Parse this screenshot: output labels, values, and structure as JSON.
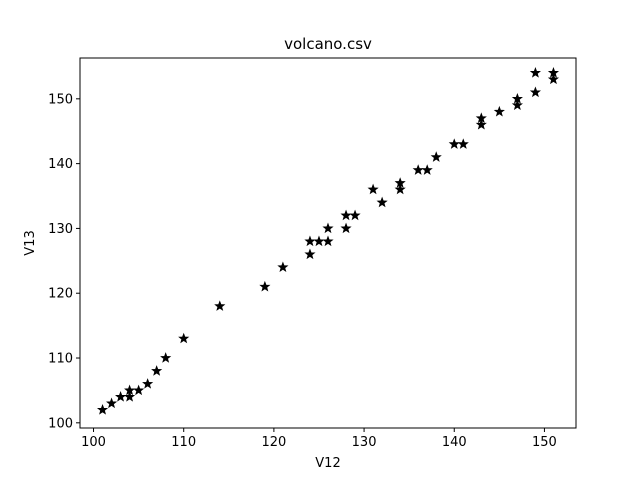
{
  "chart_data": {
    "type": "scatter",
    "title": "volcano.csv",
    "xlabel": "V12",
    "ylabel": "V13",
    "xlim": [
      98.5,
      153.5
    ],
    "ylim": [
      99.2,
      156.3
    ],
    "xticks": [
      100,
      110,
      120,
      130,
      140,
      150
    ],
    "yticks": [
      100,
      110,
      120,
      130,
      140,
      150
    ],
    "marker": "star",
    "marker_color": "#000000",
    "grid": false,
    "points": [
      [
        101,
        102
      ],
      [
        102,
        103
      ],
      [
        103,
        104
      ],
      [
        104,
        104
      ],
      [
        104,
        105
      ],
      [
        105,
        105
      ],
      [
        106,
        106
      ],
      [
        107,
        108
      ],
      [
        108,
        110
      ],
      [
        110,
        113
      ],
      [
        114,
        118
      ],
      [
        119,
        121
      ],
      [
        121,
        124
      ],
      [
        124,
        126
      ],
      [
        124,
        128
      ],
      [
        125,
        128
      ],
      [
        126,
        128
      ],
      [
        126,
        130
      ],
      [
        128,
        130
      ],
      [
        128,
        132
      ],
      [
        129,
        132
      ],
      [
        131,
        136
      ],
      [
        132,
        134
      ],
      [
        134,
        136
      ],
      [
        134,
        137
      ],
      [
        136,
        139
      ],
      [
        137,
        139
      ],
      [
        138,
        141
      ],
      [
        140,
        143
      ],
      [
        141,
        143
      ],
      [
        143,
        146
      ],
      [
        143,
        147
      ],
      [
        145,
        148
      ],
      [
        147,
        149
      ],
      [
        147,
        150
      ],
      [
        149,
        151
      ],
      [
        149,
        154
      ],
      [
        151,
        153
      ],
      [
        151,
        154
      ]
    ]
  }
}
